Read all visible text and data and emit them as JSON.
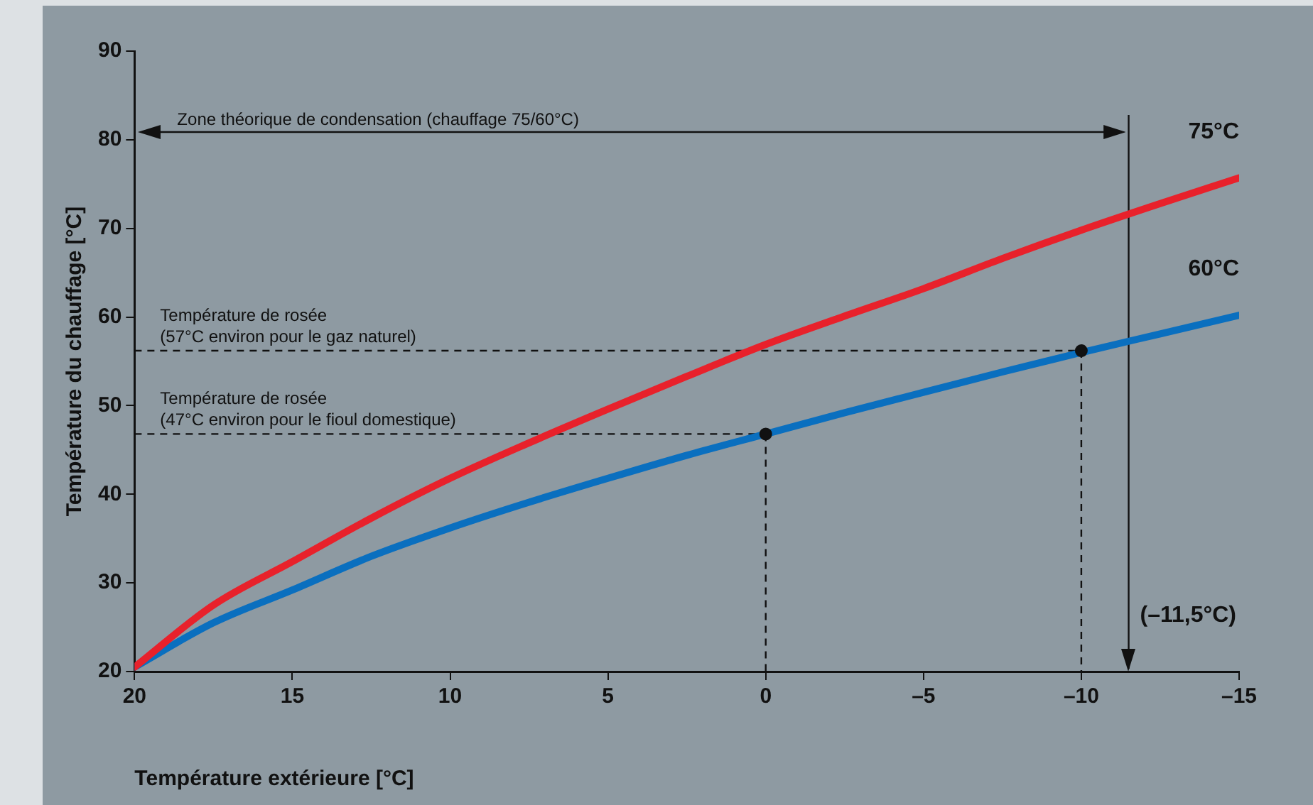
{
  "chart_data": {
    "type": "line",
    "xlabel": "Température extérieure [°C]",
    "ylabel": "Température du chauffage [°C]",
    "x": [
      20,
      17.5,
      15,
      12.5,
      10,
      7.5,
      5,
      2.5,
      0,
      -2.5,
      -5,
      -7.5,
      -10,
      -12.5,
      -15
    ],
    "series": [
      {
        "name": "75°C",
        "color": "#e8212b",
        "values": [
          20.5,
          27.5,
          32.4,
          37.3,
          41.8,
          45.8,
          49.6,
          53.3,
          56.9,
          60.1,
          63.2,
          66.6,
          69.8,
          72.8,
          75.7
        ]
      },
      {
        "name": "60°C",
        "color": "#0a6fbf",
        "values": [
          20.5,
          25.5,
          29.2,
          33,
          36.2,
          39.1,
          41.8,
          44.4,
          46.8,
          49.2,
          51.5,
          53.8,
          56,
          58.1,
          60.2
        ]
      },
      {
        "type": "scatter",
        "color": "#111111",
        "x": [
          0,
          -10
        ],
        "values": [
          46.8,
          56.2
        ]
      }
    ],
    "xlim": [
      20,
      -15
    ],
    "xticks": [
      20,
      15,
      10,
      5,
      0,
      {
        "value": -5,
        "label": "–5"
      },
      {
        "value": -10,
        "label": "–10"
      },
      {
        "value": -15,
        "label": "–15"
      }
    ],
    "ylim": [
      20,
      90
    ],
    "yticks": [
      20,
      30,
      40,
      50,
      60,
      70,
      80,
      90
    ],
    "legend": false,
    "line_style": "solid",
    "ref_lines": [
      {
        "axis": "y",
        "value": 56.2,
        "label": "Température de rosée\n(57°C environ pour le gaz naturel)",
        "line_style": "dashed",
        "color": "#111111"
      },
      {
        "axis": "y",
        "value": 46.8,
        "label": "Température de rosée\n(47°C environ pour le fioul domestique)",
        "line_style": "dashed",
        "color": "#111111"
      },
      {
        "axis": "x",
        "value": 0,
        "line_style": "dashed",
        "color": "#111111"
      },
      {
        "axis": "x",
        "value": -10,
        "line_style": "dashed",
        "color": "#111111"
      },
      {
        "axis": "x",
        "value": -11.5,
        "label": "(–11,5°C)",
        "line_style": "solid",
        "color": "#111111"
      }
    ],
    "annotations": [
      "Zone théorique de condensation (chauffage 75/60°C)"
    ]
  }
}
